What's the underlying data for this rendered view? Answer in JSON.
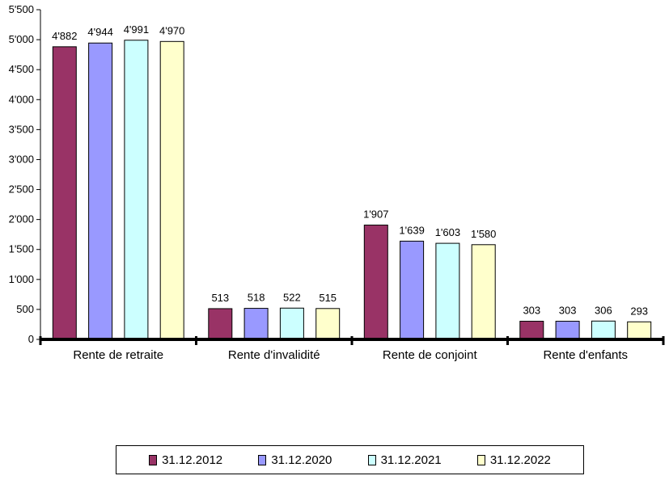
{
  "chart_data": {
    "type": "bar",
    "categories": [
      "Rente de retraite",
      "Rente d'invalidité",
      "Rente de conjoint",
      "Rente d'enfants"
    ],
    "series": [
      {
        "name": "31.12.2012",
        "color": "#993366",
        "values": [
          4882,
          513,
          1907,
          303
        ],
        "labels": [
          "4'882",
          "513",
          "1'907",
          "303"
        ]
      },
      {
        "name": "31.12.2020",
        "color": "#9999FF",
        "values": [
          4944,
          518,
          1639,
          303
        ],
        "labels": [
          "4'944",
          "518",
          "1'639",
          "303"
        ]
      },
      {
        "name": "31.12.2021",
        "color": "#CCFFFF",
        "values": [
          4991,
          522,
          1603,
          306
        ],
        "labels": [
          "4'991",
          "522",
          "1'603",
          "306"
        ]
      },
      {
        "name": "31.12.2022",
        "color": "#FFFFCC",
        "values": [
          4970,
          515,
          1580,
          293
        ],
        "labels": [
          "4'970",
          "515",
          "1'580",
          "293"
        ]
      }
    ],
    "ylim": [
      0,
      5500
    ],
    "yticks": [
      0,
      500,
      1000,
      1500,
      2000,
      2500,
      3000,
      3500,
      4000,
      4500,
      5000,
      5500
    ],
    "ytick_labels": [
      "0",
      "500",
      "1'000",
      "1'500",
      "2'000",
      "2'500",
      "3'000",
      "3'500",
      "4'000",
      "4'500",
      "5'000",
      "5'500"
    ],
    "grid": false,
    "legend_position": "bottom"
  }
}
